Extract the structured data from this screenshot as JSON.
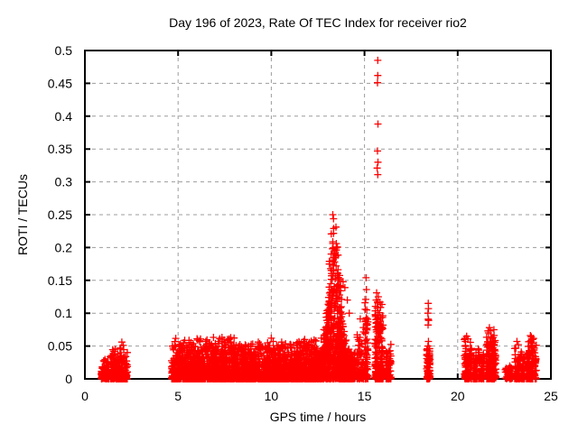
{
  "page": {
    "background": "#ffffff"
  },
  "chart_data": {
    "type": "scatter",
    "title": "Day 196 of 2023, Rate Of TEC Index for receiver rio2",
    "xlabel": "GPS time / hours",
    "ylabel": "ROTI / TECUs",
    "xlim": [
      0,
      25
    ],
    "ylim": [
      0,
      0.5
    ],
    "xticks": {
      "values": [
        0,
        5,
        10,
        15,
        20,
        25
      ],
      "labels": [
        "0",
        "5",
        "10",
        "15",
        "20",
        "25"
      ]
    },
    "yticks": {
      "values": [
        0,
        0.05,
        0.1,
        0.15,
        0.2,
        0.25,
        0.3,
        0.35,
        0.4,
        0.45,
        0.5
      ],
      "labels": [
        "0",
        "0.05",
        "0.1",
        "0.15",
        "0.2",
        "0.25",
        "0.3",
        "0.35",
        "0.4",
        "0.45",
        "0.5"
      ]
    },
    "grid": {
      "show": true,
      "color": "#9c9c9c",
      "dash": "4,4"
    },
    "axis_color": "#000000",
    "marker": {
      "shape": "plus",
      "color": "#ff0000",
      "size": 4,
      "stroke_width": 1.3
    },
    "legend": "none",
    "seed": 20230196,
    "note": "Dense GNSS ROTI scatter (~5500 epochs/satellite points). 'clusters' are density descriptors (x-range in hours, point count, max ROTI, bottom-heavy exponent gamma, optional gaussian envelope 'peak'); 'outlier_points' are the individually visible [hour, ROTI] markers.",
    "clusters": [
      {
        "x0": 0.88,
        "x1": 1.28,
        "n": 110,
        "vmax": 0.033,
        "gamma": 1.8
      },
      {
        "x0": 1.36,
        "x1": 2.28,
        "n": 220,
        "vmax": 0.05,
        "gamma": 2.4
      },
      {
        "x0": 4.65,
        "x1": 12.55,
        "n": 2800,
        "vmax": 0.066,
        "gamma": 3.0
      },
      {
        "x0": 12.5,
        "x1": 14.5,
        "n": 1050,
        "gamma": 2.0,
        "peak": {
          "base": 0.042,
          "amp": 0.215,
          "center": 13.38,
          "width": 0.42
        }
      },
      {
        "x0": 14.58,
        "x1": 14.95,
        "n": 70,
        "vmax": 0.1,
        "gamma": 2.6
      },
      {
        "x0": 15.02,
        "x1": 15.18,
        "n": 70,
        "vmax": 0.135,
        "gamma": 2.4
      },
      {
        "x0": 15.55,
        "x1": 16.0,
        "n": 230,
        "vmax": 0.132,
        "gamma": 2.6
      },
      {
        "x0": 16.15,
        "x1": 16.42,
        "n": 90,
        "vmax": 0.06,
        "gamma": 2.2
      },
      {
        "x0": 18.33,
        "x1": 18.52,
        "n": 85,
        "vmax": 0.05,
        "gamma": 1.8
      },
      {
        "x0": 20.35,
        "x1": 20.75,
        "n": 120,
        "vmax": 0.064,
        "gamma": 2.2
      },
      {
        "x0": 20.82,
        "x1": 21.05,
        "n": 65,
        "vmax": 0.05,
        "gamma": 2.0
      },
      {
        "x0": 21.1,
        "x1": 21.42,
        "n": 75,
        "vmax": 0.052,
        "gamma": 2.0
      },
      {
        "x0": 21.55,
        "x1": 22.05,
        "n": 180,
        "vmax": 0.077,
        "gamma": 2.2
      },
      {
        "x0": 22.55,
        "x1": 22.95,
        "n": 60,
        "vmax": 0.022,
        "gamma": 1.6
      },
      {
        "x0": 23.05,
        "x1": 23.6,
        "n": 115,
        "vmax": 0.055,
        "gamma": 2.2
      },
      {
        "x0": 23.68,
        "x1": 24.22,
        "n": 140,
        "vmax": 0.064,
        "gamma": 1.9
      }
    ],
    "outlier_points": [
      [
        13.3,
        0.25
      ],
      [
        13.35,
        0.229
      ],
      [
        13.28,
        0.198
      ],
      [
        13.4,
        0.19
      ],
      [
        13.33,
        0.181
      ],
      [
        13.48,
        0.172
      ],
      [
        13.22,
        0.165
      ],
      [
        13.55,
        0.16
      ],
      [
        13.62,
        0.15
      ],
      [
        13.85,
        0.148
      ],
      [
        13.7,
        0.142
      ],
      [
        13.95,
        0.139
      ],
      [
        13.18,
        0.132
      ],
      [
        14.08,
        0.12
      ],
      [
        13.1,
        0.112
      ],
      [
        14.18,
        0.1
      ],
      [
        12.95,
        0.094
      ],
      [
        12.82,
        0.075
      ],
      [
        12.68,
        0.062
      ],
      [
        15.08,
        0.154
      ],
      [
        15.1,
        0.136
      ],
      [
        15.07,
        0.121
      ],
      [
        15.12,
        0.105
      ],
      [
        15.09,
        0.093
      ],
      [
        15.11,
        0.084
      ],
      [
        15.71,
        0.485
      ],
      [
        15.71,
        0.462
      ],
      [
        15.7,
        0.451
      ],
      [
        15.72,
        0.388
      ],
      [
        15.7,
        0.347
      ],
      [
        15.72,
        0.33
      ],
      [
        15.68,
        0.321
      ],
      [
        15.71,
        0.311
      ],
      [
        15.65,
        0.131
      ],
      [
        15.74,
        0.125
      ],
      [
        15.7,
        0.117
      ],
      [
        15.68,
        0.108
      ],
      [
        15.73,
        0.101
      ],
      [
        18.42,
        0.115
      ],
      [
        18.43,
        0.107
      ],
      [
        18.4,
        0.1
      ],
      [
        18.42,
        0.091
      ],
      [
        18.44,
        0.089
      ],
      [
        18.41,
        0.082
      ],
      [
        18.43,
        0.057
      ],
      [
        18.4,
        0.05
      ],
      [
        1.98,
        0.056
      ],
      [
        2.06,
        0.051
      ],
      [
        1.92,
        0.047
      ],
      [
        1.55,
        0.042
      ],
      [
        5.05,
        0.052
      ],
      [
        5.3,
        0.055
      ],
      [
        6.05,
        0.059
      ],
      [
        6.5,
        0.051
      ],
      [
        7.0,
        0.054
      ],
      [
        7.15,
        0.057
      ],
      [
        7.5,
        0.055
      ],
      [
        7.65,
        0.06
      ],
      [
        7.8,
        0.056
      ],
      [
        8.0,
        0.052
      ],
      [
        8.4,
        0.049
      ],
      [
        9.0,
        0.053
      ],
      [
        9.3,
        0.056
      ],
      [
        9.8,
        0.055
      ],
      [
        10.0,
        0.062
      ],
      [
        10.1,
        0.057
      ],
      [
        10.6,
        0.05
      ],
      [
        11.1,
        0.048
      ],
      [
        11.35,
        0.052
      ],
      [
        11.8,
        0.049
      ],
      [
        12.05,
        0.051
      ],
      [
        12.4,
        0.058
      ],
      [
        20.48,
        0.065
      ],
      [
        20.55,
        0.061
      ],
      [
        21.7,
        0.078
      ],
      [
        21.75,
        0.073
      ],
      [
        21.65,
        0.07
      ],
      [
        23.18,
        0.057
      ],
      [
        23.25,
        0.052
      ],
      [
        23.9,
        0.066
      ],
      [
        23.95,
        0.064
      ],
      [
        23.98,
        0.061
      ],
      [
        23.92,
        0.058
      ],
      [
        23.96,
        0.056
      ],
      [
        24.0,
        0.054
      ],
      [
        23.93,
        0.051
      ],
      [
        23.99,
        0.049
      ],
      [
        24.02,
        0.06
      ],
      [
        23.97,
        0.047
      ]
    ]
  }
}
